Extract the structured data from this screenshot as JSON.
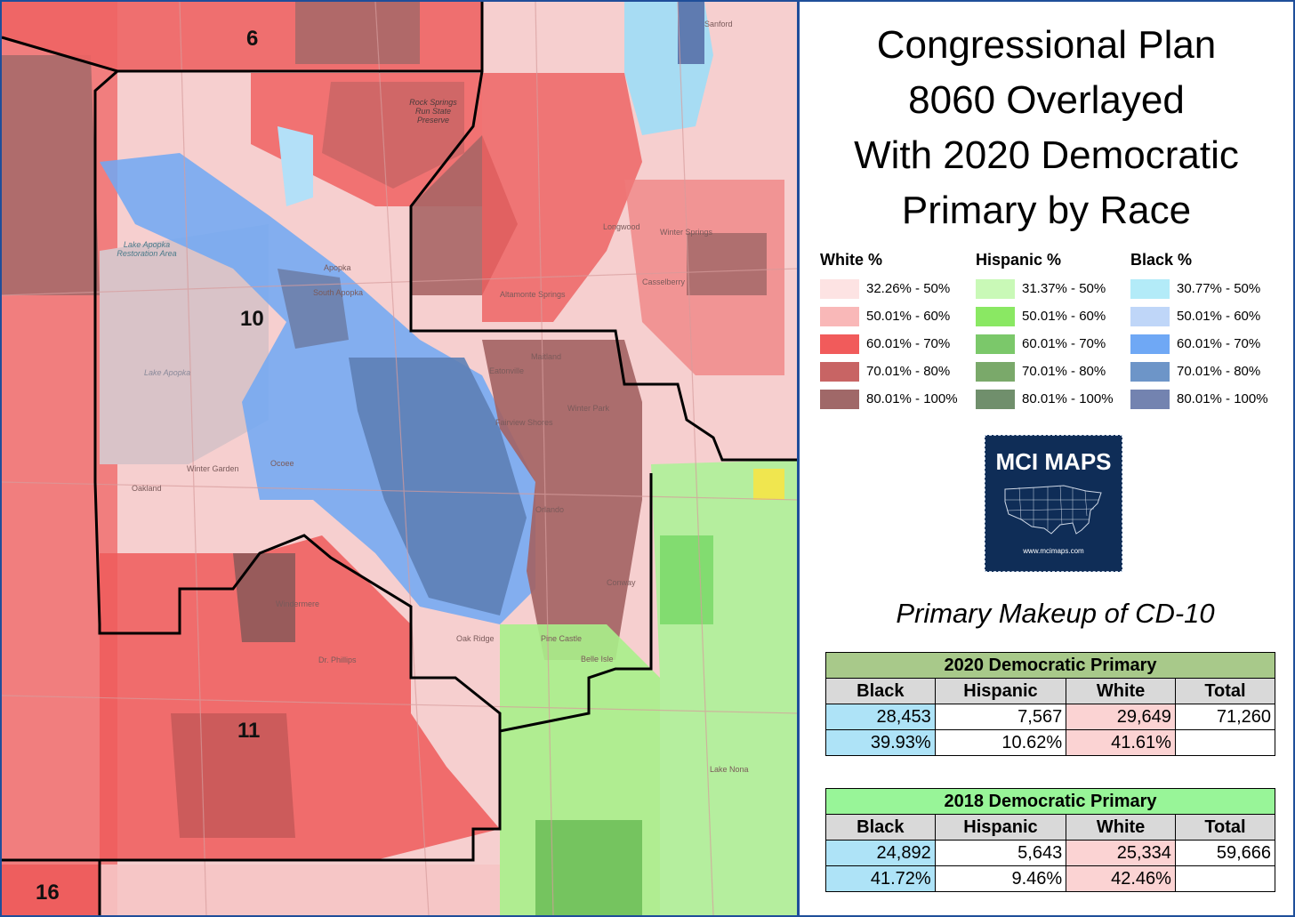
{
  "title_lines": [
    "Congressional Plan",
    "8060 Overlayed",
    "With 2020 Democratic",
    "Primary by Race"
  ],
  "legend": [
    {
      "heading": "White %",
      "items": [
        {
          "label": "32.26% - 50%",
          "color": "#fde3e3"
        },
        {
          "label": "50.01% - 60%",
          "color": "#f9b8b8"
        },
        {
          "label": "60.01% - 70%",
          "color": "#f15b5b"
        },
        {
          "label": "70.01% - 80%",
          "color": "#c86464"
        },
        {
          "label": "80.01% - 100%",
          "color": "#a06868"
        }
      ]
    },
    {
      "heading": "Hispanic %",
      "items": [
        {
          "label": "31.37% - 50%",
          "color": "#c9f9b7"
        },
        {
          "label": "50.01% - 60%",
          "color": "#8ae863"
        },
        {
          "label": "60.01% - 70%",
          "color": "#7bc86a"
        },
        {
          "label": "70.01% - 80%",
          "color": "#7aa96a"
        },
        {
          "label": "80.01% - 100%",
          "color": "#708f6c"
        }
      ]
    },
    {
      "heading": "Black %",
      "items": [
        {
          "label": "30.77% - 50%",
          "color": "#b3ebf8"
        },
        {
          "label": "50.01% - 60%",
          "color": "#bfd6f8"
        },
        {
          "label": "60.01% - 70%",
          "color": "#6fa8f5"
        },
        {
          "label": "70.01% - 80%",
          "color": "#6d95c8"
        },
        {
          "label": "80.01% - 100%",
          "color": "#7383b0"
        }
      ]
    }
  ],
  "logo": {
    "text": "MCI MAPS",
    "url": "www.mcimaps.com"
  },
  "makeup_title": "Primary Makeup of CD-10",
  "tables": [
    {
      "title": "2020 Democratic Primary",
      "columns": [
        "Black",
        "Hispanic",
        "White",
        "Total"
      ],
      "rows": [
        [
          "28,453",
          "7,567",
          "29,649",
          "71,260"
        ],
        [
          "39.93%",
          "10.62%",
          "41.61%",
          ""
        ]
      ]
    },
    {
      "title": "2018 Democratic Primary",
      "columns": [
        "Black",
        "Hispanic",
        "White",
        "Total"
      ],
      "rows": [
        [
          "24,892",
          "5,643",
          "25,334",
          "59,666"
        ],
        [
          "41.72%",
          "9.46%",
          "42.46%",
          ""
        ]
      ]
    }
  ],
  "map": {
    "districts": [
      "6",
      "10",
      "11",
      "16"
    ],
    "places": [
      "Sanford",
      "Lake Apopka Restoration Area",
      "Lake Apopka",
      "Rock Springs Run State Preserve",
      "Apopka",
      "South Apopka",
      "Winter Garden",
      "Ocoee",
      "Oakland",
      "Maitland",
      "Eatonville",
      "Winter Park",
      "Fairview Shores",
      "Orlando",
      "Windermere",
      "Dr. Phillips",
      "Oak Ridge",
      "Pine Castle",
      "Belle Isle",
      "Conway",
      "Longwood",
      "Winter Springs",
      "Casselberry",
      "Altamonte Springs",
      "Lake Nona"
    ]
  }
}
